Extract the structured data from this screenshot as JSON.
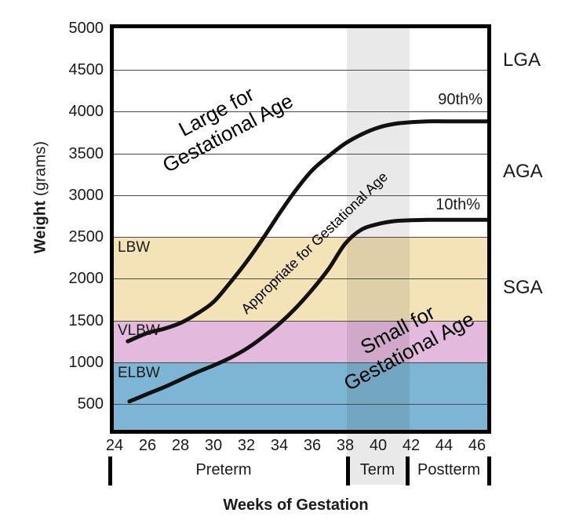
{
  "labels": {
    "y_axis_bold": "Weight",
    "y_axis_unit": " (grams)"
  },
  "chart_data": {
    "type": "line",
    "title": "",
    "xlabel": "Weeks of Gestation",
    "ylabel": "Weight (grams)",
    "xlim": [
      23.95,
      46.62
    ],
    "ylim": [
      190,
      5000
    ],
    "grid": true,
    "x_ticks": [
      24,
      26,
      28,
      30,
      32,
      34,
      36,
      38,
      40,
      42,
      44,
      46
    ],
    "y_ticks": [
      500,
      1000,
      1500,
      2000,
      2500,
      3000,
      3500,
      4000,
      4500,
      5000
    ],
    "series": [
      {
        "name": "90th%",
        "color": "#111111",
        "points": [
          [
            24.8,
            1250
          ],
          [
            26,
            1350
          ],
          [
            27,
            1400
          ],
          [
            28,
            1470
          ],
          [
            29,
            1580
          ],
          [
            30,
            1720
          ],
          [
            31,
            1950
          ],
          [
            32,
            2200
          ],
          [
            33,
            2480
          ],
          [
            34,
            2780
          ],
          [
            35,
            3060
          ],
          [
            36,
            3300
          ],
          [
            37,
            3470
          ],
          [
            38,
            3620
          ],
          [
            39,
            3730
          ],
          [
            40,
            3810
          ],
          [
            41,
            3855
          ],
          [
            42,
            3875
          ],
          [
            43,
            3885
          ],
          [
            44,
            3885
          ],
          [
            45,
            3885
          ],
          [
            46.6,
            3885
          ]
        ]
      },
      {
        "name": "10th%",
        "color": "#111111",
        "points": [
          [
            24.9,
            530
          ],
          [
            26,
            620
          ],
          [
            27,
            700
          ],
          [
            28,
            790
          ],
          [
            29,
            880
          ],
          [
            30,
            960
          ],
          [
            31,
            1050
          ],
          [
            32,
            1160
          ],
          [
            33,
            1300
          ],
          [
            34,
            1460
          ],
          [
            35,
            1650
          ],
          [
            36,
            1870
          ],
          [
            37,
            2120
          ],
          [
            38,
            2420
          ],
          [
            39,
            2590
          ],
          [
            40,
            2655
          ],
          [
            41,
            2690
          ],
          [
            42,
            2700
          ],
          [
            43,
            2705
          ],
          [
            44,
            2705
          ],
          [
            45,
            2705
          ],
          [
            46.6,
            2705
          ]
        ]
      }
    ],
    "bands_y": [
      {
        "label": "LBW",
        "from": 1500,
        "to": 2500,
        "color": "#F5E3B8"
      },
      {
        "label": "VLBW",
        "from": 1000,
        "to": 1500,
        "color": "#E4B9DE"
      },
      {
        "label": "ELBW",
        "from": 190,
        "to": 1000,
        "color": "#7DB6D4"
      }
    ],
    "band_x": {
      "from": 38.1,
      "to": 41.9
    },
    "annotations": [
      {
        "id": "large",
        "lines": [
          "Large for",
          "Gestational Age"
        ]
      },
      {
        "id": "appropriate",
        "lines": [
          "Appropriate for Gestational Age"
        ]
      },
      {
        "id": "small",
        "lines": [
          "Small for",
          "Gestational Age"
        ]
      }
    ],
    "right_labels": [
      "LGA",
      "AGA",
      "SGA"
    ],
    "x_periods": [
      {
        "label": "Preterm"
      },
      {
        "label": "Term"
      },
      {
        "label": "Postterm"
      }
    ]
  }
}
